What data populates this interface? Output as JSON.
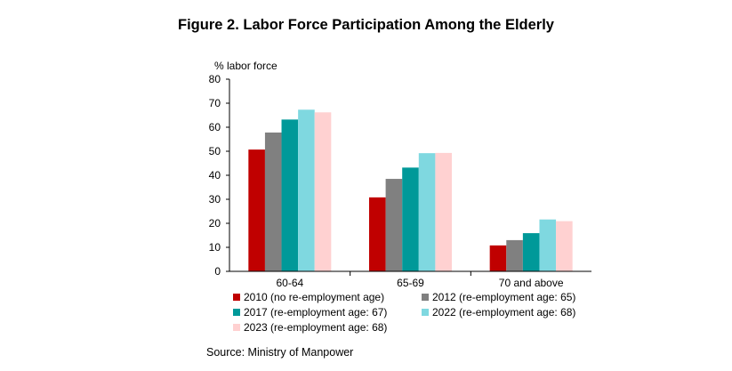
{
  "title": "Figure 2. Labor Force Participation Among the Elderly",
  "source": "Source: Ministry of Manpower",
  "chart_data": {
    "type": "bar",
    "title": "Figure 2. Labor Force Participation Among the Elderly",
    "ylabel": "% labor force",
    "xlabel": "",
    "ylim": [
      0,
      80
    ],
    "yticks": [
      0,
      10,
      20,
      30,
      40,
      50,
      60,
      70,
      80
    ],
    "grid": false,
    "legend_position": "bottom",
    "categories": [
      "60-64",
      "65-69",
      "70 and above"
    ],
    "series": [
      {
        "name": "2010 (no re-employment age)",
        "color": "#C00000",
        "values": [
          50.7,
          30.8,
          10.8
        ]
      },
      {
        "name": "2012 (re-employment age: 65)",
        "color": "#808080",
        "values": [
          57.8,
          38.5,
          13.0
        ]
      },
      {
        "name": "2017 (re-employment age: 67)",
        "color": "#009999",
        "values": [
          63.2,
          43.2,
          15.9
        ]
      },
      {
        "name": "2022 (re-employment age: 68)",
        "color": "#7FD8E0",
        "values": [
          67.3,
          49.2,
          21.6
        ]
      },
      {
        "name": "2023 (re-employment age: 68)",
        "color": "#FFD1D1",
        "values": [
          66.2,
          49.3,
          20.9
        ]
      }
    ]
  }
}
